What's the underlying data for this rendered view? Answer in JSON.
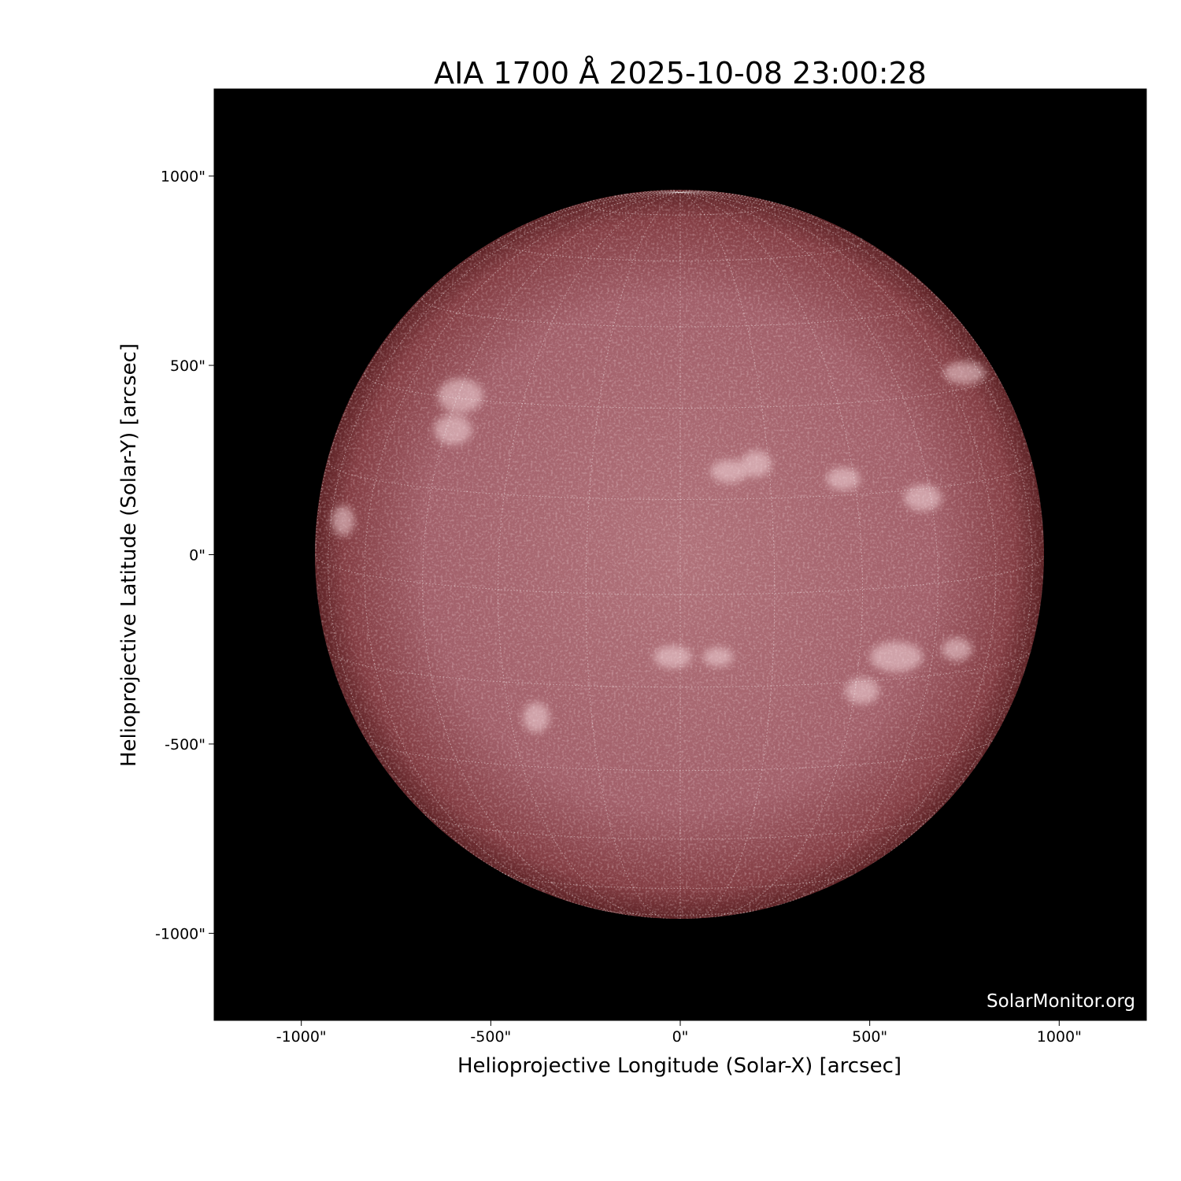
{
  "chart_data": {
    "type": "heatmap",
    "title": "AIA 1700 Å 2025-10-08 23:00:28",
    "xlabel": "Helioprojective Longitude (Solar-X) [arcsec]",
    "ylabel": "Helioprojective Latitude (Solar-Y) [arcsec]",
    "xlim": [
      -1230,
      1230
    ],
    "ylim": [
      -1230,
      1230
    ],
    "xticks": [
      -1000,
      -500,
      0,
      500,
      1000
    ],
    "yticks": [
      1000,
      500,
      0,
      -500,
      -1000
    ],
    "xtick_labels": [
      "-1000\"",
      "-500\"",
      "0\"",
      "500\"",
      "1000\""
    ],
    "ytick_labels": [
      "1000\"",
      "500\"",
      "0\"",
      "-500\"",
      "-1000\""
    ],
    "solar_radius_arcsec": 962,
    "grid": "heliographic lines every 15°",
    "colormap": "sdoaia1700",
    "colors": {
      "background": "#000000",
      "disk_center": "#b0707a",
      "disk_limb": "#5e2326",
      "grid": "#ffffff"
    },
    "watermark": "SolarMonitor.org"
  }
}
